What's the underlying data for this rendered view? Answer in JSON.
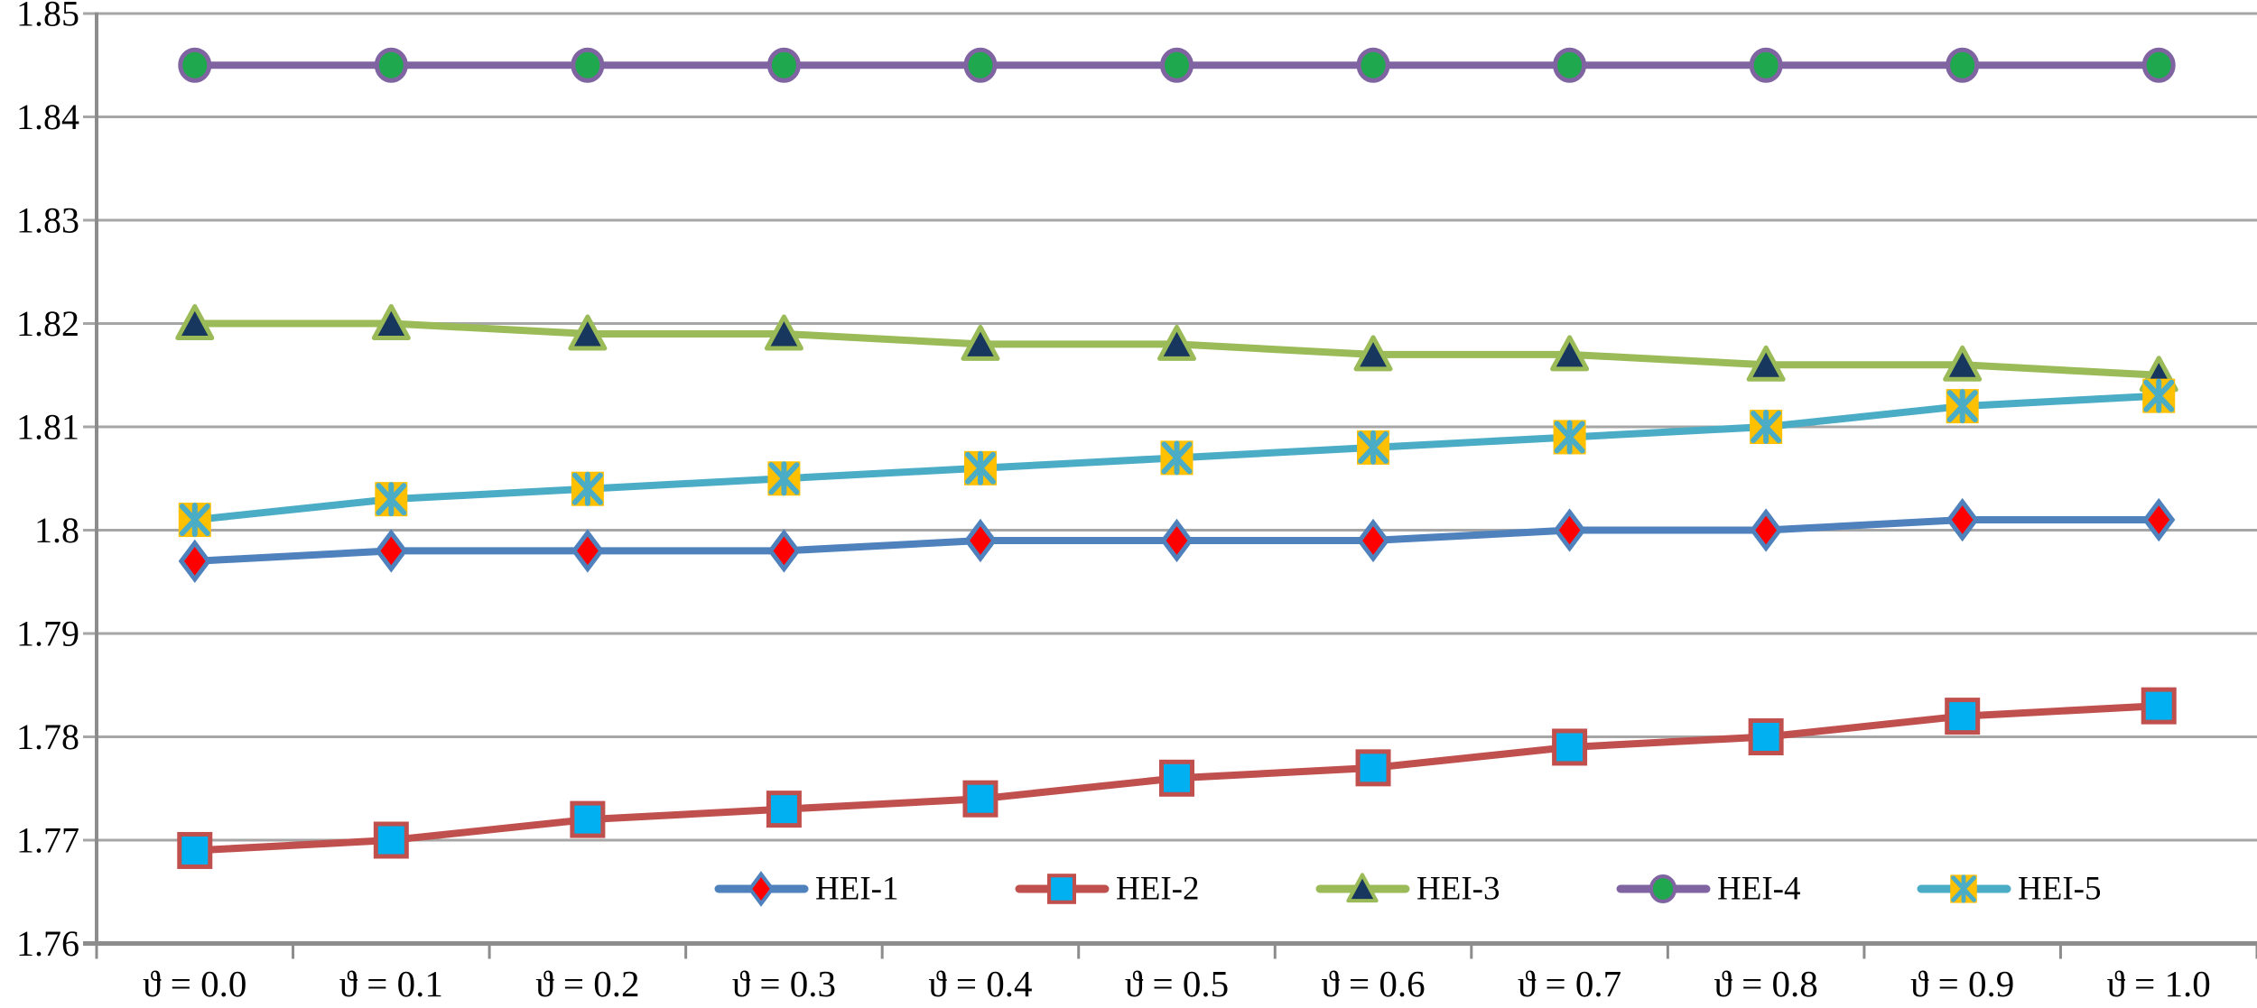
{
  "chart_data": {
    "type": "line",
    "title": "",
    "xlabel": "",
    "ylabel": "",
    "categories": [
      "ϑ = 0.0",
      "ϑ = 0.1",
      "ϑ = 0.2",
      "ϑ = 0.3",
      "ϑ = 0.4",
      "ϑ = 0.5",
      "ϑ = 0.6",
      "ϑ = 0.7",
      "ϑ = 0.8",
      "ϑ = 0.9",
      "ϑ = 1.0"
    ],
    "series": [
      {
        "name": "HEI-1",
        "values": [
          1.797,
          1.798,
          1.798,
          1.798,
          1.799,
          1.799,
          1.799,
          1.8,
          1.8,
          1.801,
          1.801
        ],
        "line_color": "#4F81BD",
        "marker": "diamond",
        "marker_fill": "#FE0000",
        "marker_stroke": "#4F81BD"
      },
      {
        "name": "HEI-2",
        "values": [
          1.769,
          1.77,
          1.772,
          1.773,
          1.774,
          1.776,
          1.777,
          1.779,
          1.78,
          1.782,
          1.783
        ],
        "line_color": "#C0504D",
        "marker": "square",
        "marker_fill": "#00B0F0",
        "marker_stroke": "#C0504D"
      },
      {
        "name": "HEI-3",
        "values": [
          1.82,
          1.82,
          1.819,
          1.819,
          1.818,
          1.818,
          1.817,
          1.817,
          1.816,
          1.816,
          1.815
        ],
        "line_color": "#9BBB59",
        "marker": "triangle",
        "marker_fill": "#17375E",
        "marker_stroke": "#9BBB59"
      },
      {
        "name": "HEI-4",
        "values": [
          1.845,
          1.845,
          1.845,
          1.845,
          1.845,
          1.845,
          1.845,
          1.845,
          1.845,
          1.845,
          1.845
        ],
        "line_color": "#8064A2",
        "marker": "circle",
        "marker_fill": "#1FA84D",
        "marker_stroke": "#8064A2"
      },
      {
        "name": "HEI-5",
        "values": [
          1.801,
          1.803,
          1.804,
          1.805,
          1.806,
          1.807,
          1.808,
          1.809,
          1.81,
          1.812,
          1.813
        ],
        "line_color": "#4BACC6",
        "marker": "x-square",
        "marker_fill": "#FFC000",
        "marker_stroke": "#4BACC6"
      }
    ],
    "ytick_labels": [
      "1.85",
      "1.84",
      "1.83",
      "1.82",
      "1.81",
      "1.8",
      "1.79",
      "1.78",
      "1.77",
      "1.76"
    ],
    "ytick_values": [
      1.85,
      1.84,
      1.83,
      1.82,
      1.81,
      1.8,
      1.79,
      1.78,
      1.77,
      1.76
    ],
    "ylim": [
      1.76,
      1.85
    ],
    "grid": true,
    "legend_position": "bottom-inside",
    "legend_entries": [
      "HEI-1",
      "HEI-2",
      "HEI-3",
      "HEI-4",
      "HEI-5"
    ],
    "background_color": "#FFFFFF",
    "gridline_color": "#A6A6A6",
    "axis_color": "#8C8C8C",
    "text_color": "#000000"
  }
}
